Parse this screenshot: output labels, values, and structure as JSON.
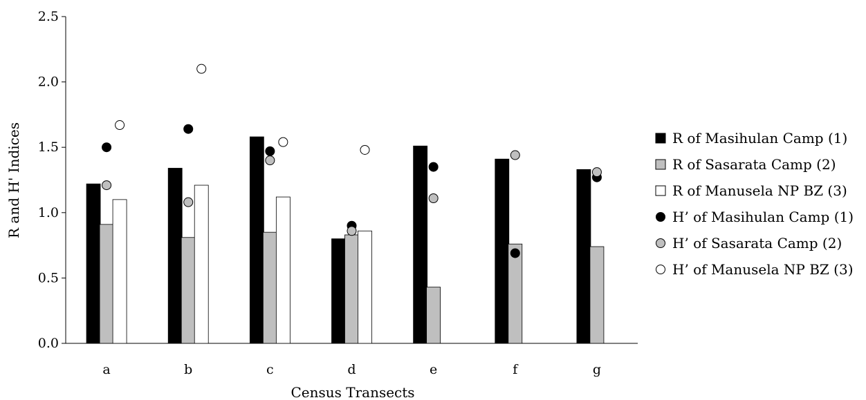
{
  "chart_data": {
    "type": "bar",
    "title": "",
    "xlabel": "Census Transects",
    "ylabel": "R and H' Indices",
    "ylim": [
      0,
      2.5
    ],
    "yticks": [
      "0.0",
      "0.5",
      "1.0",
      "1.5",
      "2.0",
      "2.5"
    ],
    "categories": [
      "a",
      "b",
      "c",
      "d",
      "e",
      "f",
      "g"
    ],
    "grid": false,
    "legend_position": "right",
    "bar_series": [
      {
        "name": "R of Masihulan Camp (1)",
        "color": "#000000",
        "values": [
          1.22,
          1.34,
          1.58,
          0.8,
          1.51,
          1.41,
          1.33
        ]
      },
      {
        "name": "R of Sasarata Camp (2)",
        "color": "#bfbfbf",
        "values": [
          0.91,
          0.81,
          0.85,
          0.83,
          0.43,
          0.76,
          0.74
        ]
      },
      {
        "name": "R of Manusela NP BZ (3)",
        "color": "#ffffff",
        "values": [
          1.1,
          1.21,
          1.12,
          0.86,
          null,
          null,
          null
        ]
      }
    ],
    "point_series": [
      {
        "name": "H’ of Masihulan Camp (1)",
        "color": "#000000",
        "values": [
          1.5,
          1.64,
          1.47,
          0.9,
          1.35,
          0.69,
          1.27
        ]
      },
      {
        "name": "H’ of Sasarata Camp (2)",
        "color": "#bfbfbf",
        "values": [
          1.21,
          1.08,
          1.4,
          0.86,
          1.11,
          1.44,
          1.31
        ]
      },
      {
        "name": "H’ of Manusela NP BZ (3)",
        "color": "#ffffff",
        "values": [
          1.67,
          2.1,
          1.54,
          1.48,
          null,
          null,
          null
        ]
      }
    ]
  }
}
